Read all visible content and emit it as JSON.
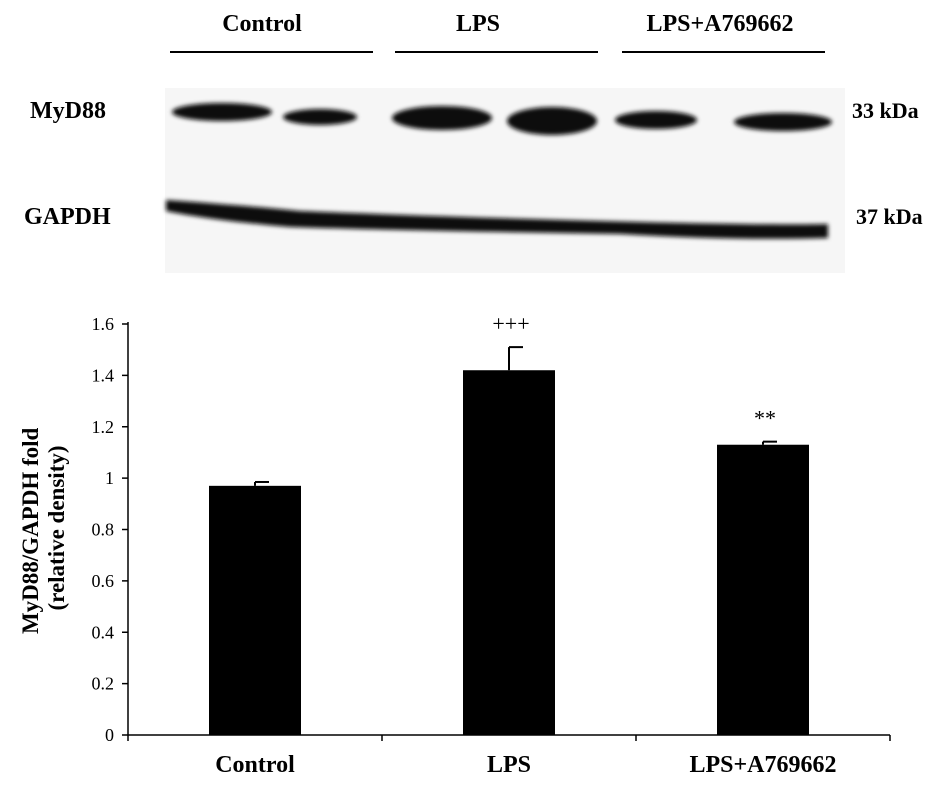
{
  "blot": {
    "groups": [
      "Control",
      "LPS",
      "LPS+A769662"
    ],
    "rows": [
      {
        "protein": "MyD88",
        "size": "33 kDa"
      },
      {
        "protein": "GAPDH",
        "size": "37 kDa"
      }
    ]
  },
  "chart_data": {
    "type": "bar",
    "categories": [
      "Control",
      "LPS",
      "LPS+A769662"
    ],
    "values": [
      0.97,
      1.42,
      1.13
    ],
    "errors": [
      0.015,
      0.09,
      0.012
    ],
    "annotations": [
      "",
      "+++",
      "**"
    ],
    "ylabel_lines": [
      "MyD88/GAPDH fold",
      "(relative density)"
    ],
    "xlabel": "",
    "title": "",
    "ylim": [
      0,
      1.6
    ],
    "yticks": [
      0,
      0.2,
      0.4,
      0.6,
      0.8,
      1,
      1.2,
      1.4,
      1.6
    ],
    "ytick_labels": [
      "0",
      "0.2",
      "0.4",
      "0.6",
      "0.8",
      "1",
      "1.2",
      "1.4",
      "1.6"
    ],
    "bar_color": "#000000",
    "grid": false,
    "legend": "none"
  }
}
